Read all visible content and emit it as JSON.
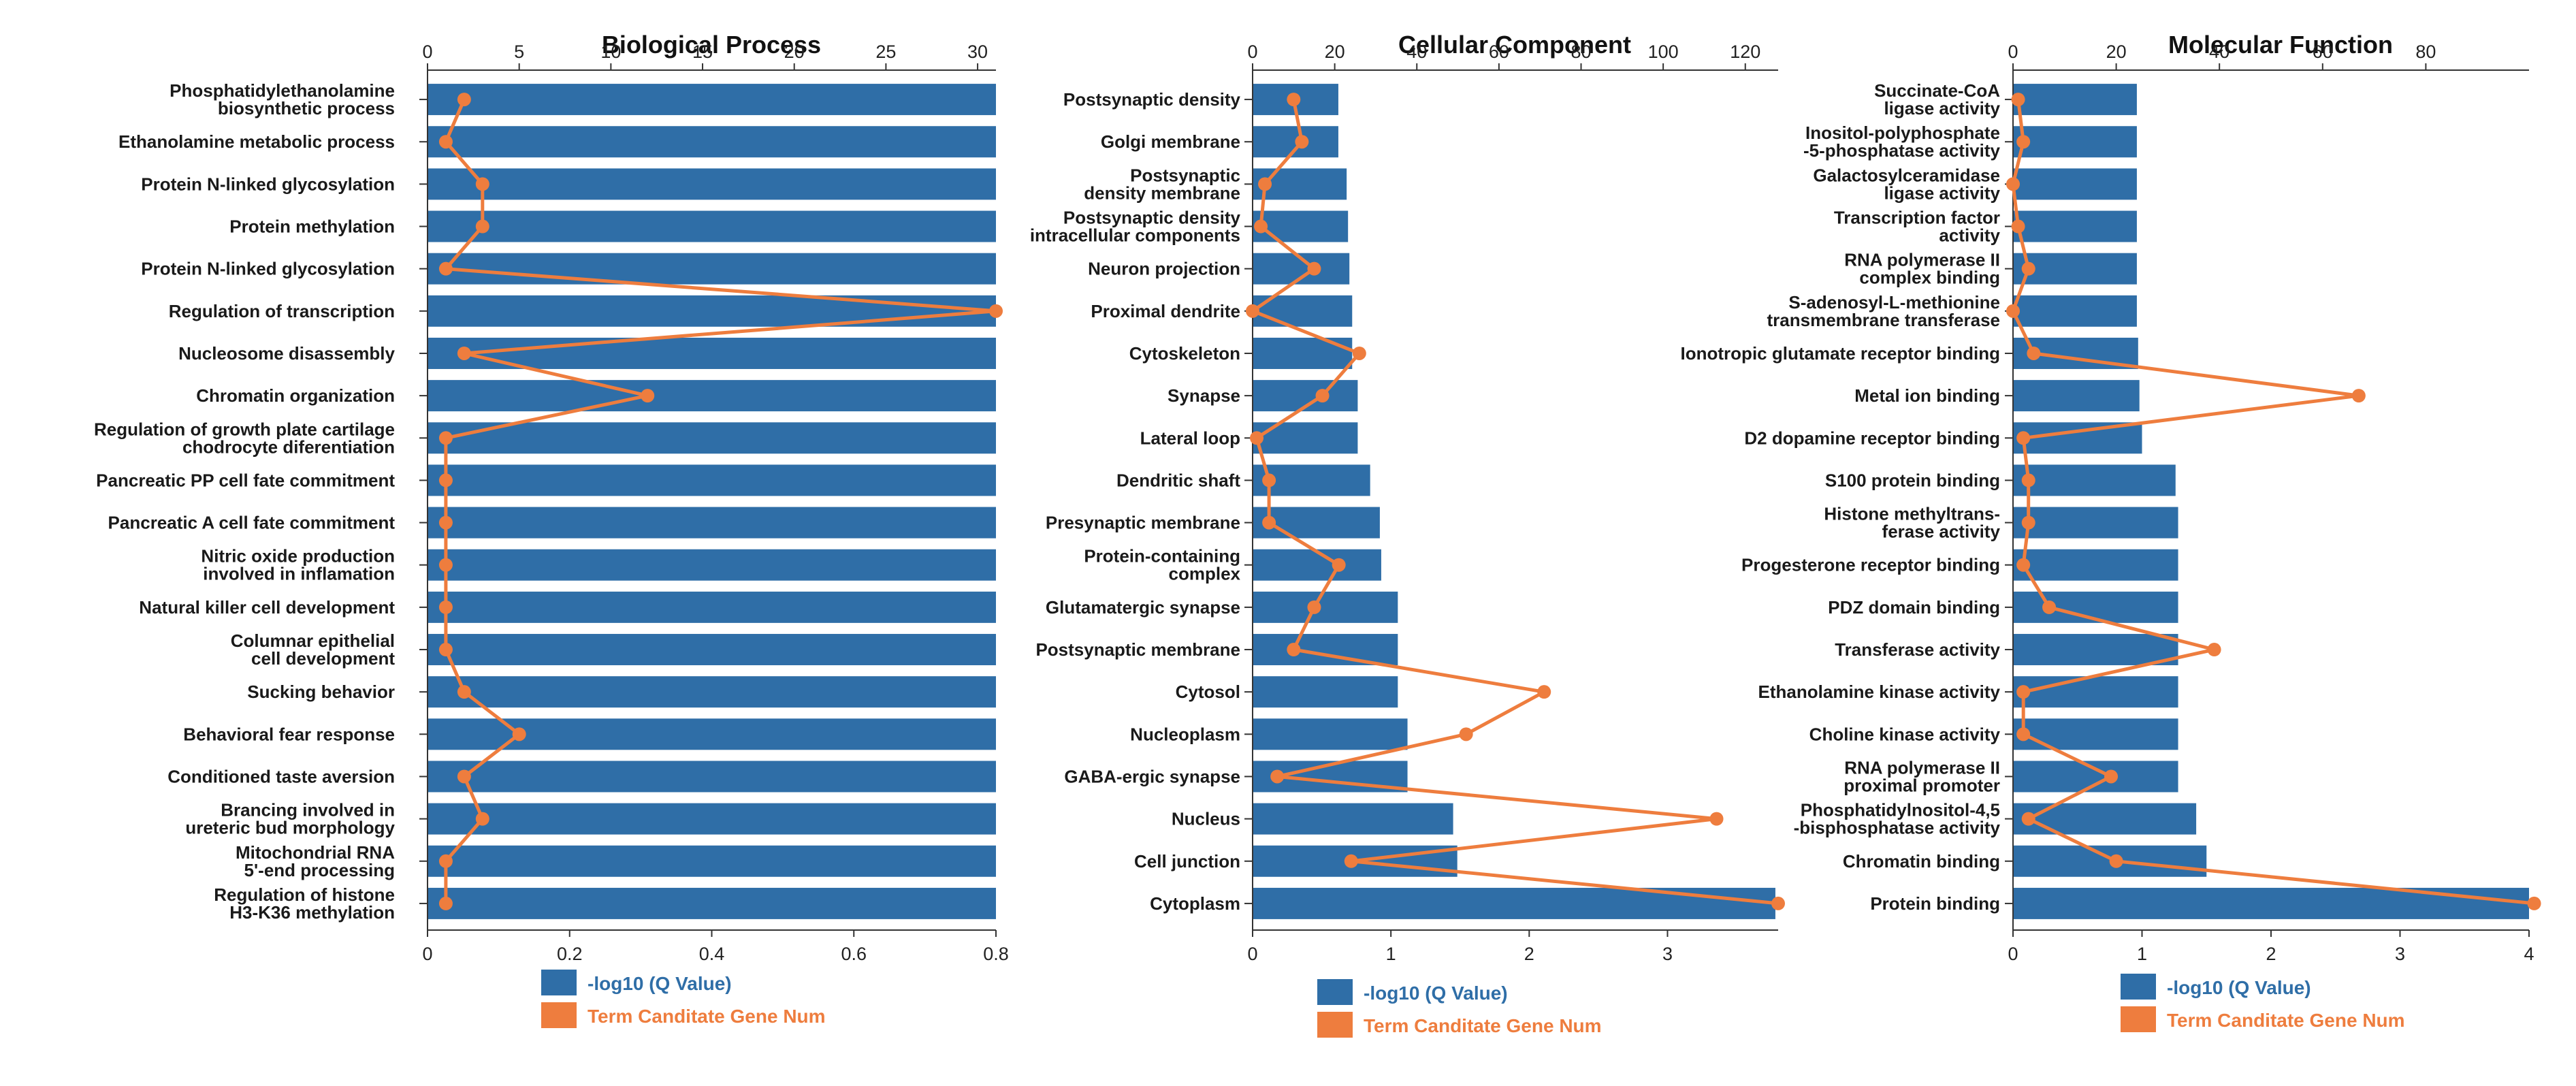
{
  "colors": {
    "bar": "#2f6ea7",
    "line": "#ee7d3e",
    "axis": "#333333"
  },
  "chart_data": [
    {
      "type": "bar",
      "title": "Biological Process",
      "categories": [
        [
          "Phosphatidylethanolamine",
          "biosynthetic process"
        ],
        [
          "Ethanolamine metabolic process"
        ],
        [
          "Protein N-linked glycosylation"
        ],
        [
          "Protein methylation"
        ],
        [
          "Protein N-linked glycosylation"
        ],
        [
          "Regulation of transcription"
        ],
        [
          "Nucleosome disassembly"
        ],
        [
          "Chromatin organization"
        ],
        [
          "Regulation of growth plate cartilage",
          "chodrocyte diferentiation"
        ],
        [
          "Pancreatic PP cell fate commitment"
        ],
        [
          "Pancreatic A  cell fate commitment"
        ],
        [
          "Nitric oxide production",
          "involved in inflamation"
        ],
        [
          "Natural killer cell development"
        ],
        [
          "Columnar epithelial",
          "cell development"
        ],
        [
          "Sucking behavior"
        ],
        [
          "Behavioral fear response"
        ],
        [
          "Conditioned taste aversion"
        ],
        [
          "Brancing involved in",
          "ureteric bud morphology"
        ],
        [
          "Mitochondrial RNA",
          "5'-end processing"
        ],
        [
          "Regulation of histone",
          "H3-K36 methylation"
        ]
      ],
      "series": [
        {
          "name": "-log10 (Q Value)",
          "axis": "bottom",
          "values": [
            0.8,
            0.8,
            0.8,
            0.8,
            0.8,
            0.8,
            0.8,
            0.8,
            0.8,
            0.8,
            0.8,
            0.8,
            0.8,
            0.8,
            0.8,
            0.8,
            0.8,
            0.8,
            0.8,
            0.8
          ]
        },
        {
          "name": "Term Canditate Gene Num",
          "axis": "top",
          "values": [
            2,
            1,
            3,
            3,
            1,
            31,
            2,
            12,
            1,
            1,
            1,
            1,
            1,
            1,
            2,
            5,
            2,
            3,
            1,
            1
          ]
        }
      ],
      "top_axis": {
        "range": [
          0,
          31
        ],
        "ticks": [
          0,
          5,
          10,
          15,
          20,
          25,
          30
        ],
        "tick_labels": [
          "0",
          "5",
          "10",
          "15",
          "20",
          "25",
          "30"
        ]
      },
      "bottom_axis": {
        "range": [
          0,
          0.8
        ],
        "ticks": [
          0,
          0.2,
          0.4,
          0.6,
          0.8
        ],
        "tick_labels": [
          "0",
          "0.2",
          "0.4",
          "0.6",
          "0.8"
        ]
      },
      "legend": [
        {
          "label": "-log10 (Q Value)",
          "kind": "bar"
        },
        {
          "label": "Term Canditate Gene Num",
          "kind": "line"
        }
      ]
    },
    {
      "type": "bar",
      "title": "Cellular Component",
      "categories": [
        [
          "Postsynaptic density"
        ],
        [
          "Golgi membrane"
        ],
        [
          "Postsynaptic",
          "density membrane"
        ],
        [
          "Postsynaptic density",
          "intracellular components"
        ],
        [
          "Neuron projection"
        ],
        [
          "Proximal dendrite"
        ],
        [
          "Cytoskeleton"
        ],
        [
          "Synapse"
        ],
        [
          "Lateral loop"
        ],
        [
          "Dendritic shaft"
        ],
        [
          "Presynaptic membrane"
        ],
        [
          "Protein-containing",
          "complex"
        ],
        [
          "Glutamatergic synapse"
        ],
        [
          "Postsynaptic membrane"
        ],
        [
          "Cytosol"
        ],
        [
          "Nucleoplasm"
        ],
        [
          "GABA-ergic synapse"
        ],
        [
          "Nucleus"
        ],
        [
          "Cell junction"
        ],
        [
          "Cytoplasm"
        ]
      ],
      "series": [
        {
          "name": "-log10 (Q Value)",
          "axis": "bottom",
          "values": [
            0.62,
            0.62,
            0.68,
            0.69,
            0.7,
            0.72,
            0.72,
            0.76,
            0.76,
            0.85,
            0.92,
            0.93,
            1.05,
            1.05,
            1.05,
            1.12,
            1.12,
            1.45,
            1.48,
            3.78
          ]
        },
        {
          "name": "Term Canditate Gene Num",
          "axis": "top",
          "values": [
            10,
            12,
            3,
            2,
            15,
            0,
            26,
            17,
            1,
            4,
            4,
            21,
            15,
            10,
            71,
            52,
            6,
            113,
            24,
            128
          ]
        }
      ],
      "top_axis": {
        "range": [
          0,
          128
        ],
        "ticks": [
          0,
          20,
          40,
          60,
          80,
          100,
          120
        ],
        "tick_labels": [
          "0",
          "20",
          "40",
          "60",
          "80",
          "100",
          "120"
        ]
      },
      "bottom_axis": {
        "range": [
          0,
          3.8
        ],
        "ticks": [
          0,
          1,
          2,
          3
        ],
        "tick_labels": [
          "0",
          "1",
          "2",
          "3"
        ]
      },
      "legend": [
        {
          "label": "-log10 (Q Value)",
          "kind": "bar"
        },
        {
          "label": "Term Canditate Gene Num",
          "kind": "line"
        }
      ]
    },
    {
      "type": "bar",
      "title": "Molecular Function",
      "categories": [
        [
          "Succinate-CoA",
          "ligase activity"
        ],
        [
          "Inositol-polyphosphate",
          "-5-phosphatase activity"
        ],
        [
          "Galactosylceramidase",
          "ligase activity"
        ],
        [
          "Transcription factor",
          "activity"
        ],
        [
          "RNA polymerase II",
          "complex binding"
        ],
        [
          "S-adenosyl-L-methionine",
          "transmembrane transferase"
        ],
        [
          "Ionotropic glutamate receptor binding"
        ],
        [
          "Metal ion binding"
        ],
        [
          "D2 dopamine receptor binding"
        ],
        [
          "S100 protein binding"
        ],
        [
          "Histone methyltrans-",
          "ferase activity"
        ],
        [
          "Progesterone receptor binding"
        ],
        [
          "PDZ domain binding"
        ],
        [
          "Transferase activity"
        ],
        [
          "Ethanolamine kinase activity"
        ],
        [
          "Choline kinase activity"
        ],
        [
          "RNA polymerase II",
          "proximal promoter"
        ],
        [
          "Phosphatidylnositol-4,5",
          "-bisphosphatase activity"
        ],
        [
          "Chromatin binding"
        ],
        [
          "Protein binding"
        ]
      ],
      "series": [
        {
          "name": "-log10 (Q Value)",
          "axis": "bottom",
          "values": [
            0.96,
            0.96,
            0.96,
            0.96,
            0.96,
            0.96,
            0.97,
            0.98,
            1.0,
            1.26,
            1.28,
            1.28,
            1.28,
            1.28,
            1.28,
            1.28,
            1.28,
            1.42,
            1.5,
            4.0
          ]
        },
        {
          "name": "Term Canditate Gene Num",
          "axis": "top",
          "values": [
            1,
            2,
            0,
            1,
            3,
            0,
            4,
            67,
            2,
            3,
            3,
            2,
            7,
            39,
            2,
            2,
            19,
            3,
            20,
            101
          ]
        }
      ],
      "top_axis": {
        "range": [
          0,
          100
        ],
        "ticks": [
          0,
          20,
          40,
          60,
          80
        ],
        "tick_labels": [
          "0",
          "20",
          "40",
          "60",
          "80"
        ]
      },
      "bottom_axis": {
        "range": [
          0,
          4
        ],
        "ticks": [
          0,
          1,
          2,
          3,
          4
        ],
        "tick_labels": [
          "0",
          "1",
          "2",
          "3",
          "4"
        ]
      },
      "legend": [
        {
          "label": "-log10 (Q Value)",
          "kind": "bar"
        },
        {
          "label": "Term Canditate Gene Num",
          "kind": "line"
        }
      ]
    }
  ]
}
